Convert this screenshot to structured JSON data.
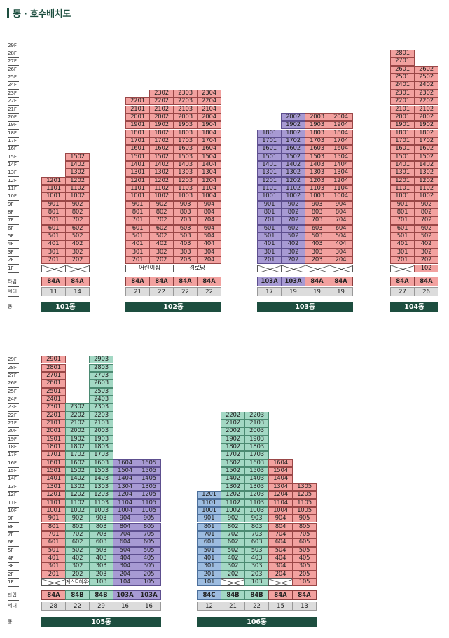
{
  "title": "동 · 호수배치도",
  "row_labels": {
    "type": "타입",
    "households": "세대",
    "dong": "동"
  },
  "sections": [
    {
      "floors_top": 29,
      "buildings": [
        {
          "dong_label": "101동",
          "columns": [
            {
              "line": "01",
              "type": "84A",
              "households": "11",
              "top": 12,
              "color": "red",
              "ground": "x"
            },
            {
              "line": "02",
              "type": "84A",
              "households": "14",
              "top": 15,
              "color": "red",
              "ground": "x",
              "color_top": "red"
            }
          ]
        },
        {
          "dong_label": "102동",
          "columns": [
            {
              "line": "01",
              "type": "84A",
              "households": "21",
              "top": 22,
              "color": "red",
              "ground_label": "어린이집",
              "ground_span": 2
            },
            {
              "line": "02",
              "type": "84A",
              "households": "22",
              "top": 23,
              "color": "red"
            },
            {
              "line": "03",
              "type": "84A",
              "households": "22",
              "top": 23,
              "color": "red",
              "ground_label": "경로당",
              "ground_span": 2
            },
            {
              "line": "04",
              "type": "84A",
              "households": "22",
              "top": 23,
              "color": "red"
            }
          ]
        },
        {
          "dong_label": "103동",
          "columns": [
            {
              "line": "01",
              "type": "103A",
              "households": "17",
              "top": 18,
              "color": "purple",
              "ground": "x"
            },
            {
              "line": "02",
              "type": "103A",
              "households": "19",
              "top": 20,
              "color": "purple",
              "ground": "x"
            },
            {
              "line": "03",
              "type": "84A",
              "households": "19",
              "top": 20,
              "color": "red",
              "ground": "x"
            },
            {
              "line": "04",
              "type": "84A",
              "households": "19",
              "top": 20,
              "color": "red",
              "ground": "x"
            }
          ]
        },
        {
          "dong_label": "104동",
          "columns": [
            {
              "line": "01",
              "type": "84A",
              "households": "27",
              "top": 28,
              "color": "red",
              "ground": "x"
            },
            {
              "line": "02",
              "type": "84A",
              "households": "26",
              "top": 26,
              "color": "red",
              "ground": "102"
            }
          ]
        }
      ]
    },
    {
      "floors_top": 29,
      "buildings": [
        {
          "dong_label": "105동",
          "columns": [
            {
              "line": "01",
              "type": "84A",
              "households": "28",
              "top": 29,
              "color": "red",
              "ground": "x"
            },
            {
              "line": "02",
              "type": "84B",
              "households": "22",
              "top": 23,
              "color": "teal",
              "ground_label": "게스트하우스"
            },
            {
              "line": "03",
              "type": "84B",
              "households": "29",
              "top": 29,
              "color": "teal",
              "ground": "103"
            },
            {
              "line": "04",
              "type": "103A",
              "households": "16",
              "top": 16,
              "color": "purple",
              "ground": "104"
            },
            {
              "line": "05",
              "type": "103A",
              "households": "16",
              "top": 16,
              "color": "purple",
              "ground": "105"
            }
          ]
        },
        {
          "dong_label": "106동",
          "columns": [
            {
              "line": "01",
              "type": "84C",
              "households": "12",
              "top": 12,
              "color": "blue",
              "ground": "101"
            },
            {
              "line": "02",
              "type": "84B",
              "households": "21",
              "top": 22,
              "color": "teal",
              "ground": "x"
            },
            {
              "line": "03",
              "type": "84B",
              "households": "22",
              "top": 22,
              "color": "teal",
              "ground": "103"
            },
            {
              "line": "04",
              "type": "84A",
              "households": "15",
              "top": 16,
              "color": "red",
              "ground": "x"
            },
            {
              "line": "05",
              "type": "84A",
              "households": "13",
              "top": 13,
              "color": "red",
              "ground": "105"
            }
          ]
        }
      ]
    }
  ],
  "colors": {
    "red": "#f2a19f",
    "purple": "#a79ad3",
    "teal": "#a3d8c4",
    "blue": "#9dbce0",
    "dong_bar": "#1d4e3f"
  }
}
